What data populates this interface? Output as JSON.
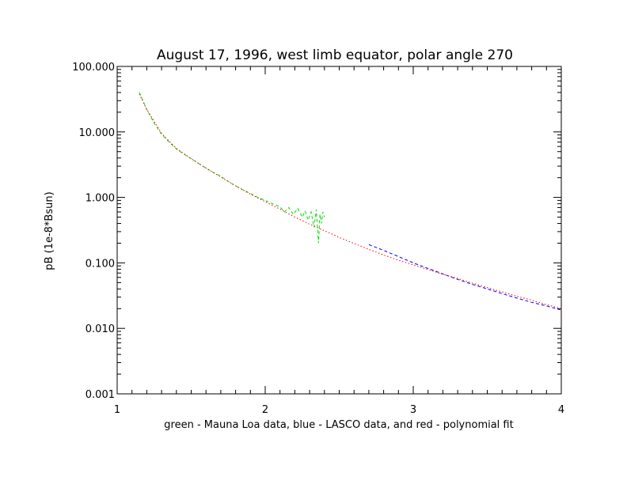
{
  "chart_data": {
    "type": "line",
    "title": "August 17, 1996, west limb equator, polar angle 270",
    "xlabel": "green - Mauna Loa data, blue - LASCO data, and red - polynomial fit",
    "ylabel": "pB (1e-8*Bsun)",
    "xlim": [
      1,
      4
    ],
    "ylim": [
      0.001,
      100
    ],
    "yscale": "log",
    "grid": false,
    "x_ticks": [
      1,
      2,
      3,
      4
    ],
    "x_tick_labels": [
      "1",
      "2",
      "3",
      "4"
    ],
    "y_ticks": [
      0.001,
      0.01,
      0.1,
      1,
      10,
      100
    ],
    "y_tick_labels": [
      "0.001",
      "0.010",
      "0.100",
      "1.000",
      "10.000",
      "100.000"
    ],
    "series": [
      {
        "color": "#00dd00",
        "style": "dashed",
        "x": [
          1.15,
          1.2,
          1.25,
          1.3,
          1.35,
          1.4,
          1.45,
          1.5,
          1.55,
          1.6,
          1.65,
          1.7,
          1.75,
          1.8,
          1.85,
          1.9,
          1.95,
          2.0,
          2.05,
          2.1,
          2.13,
          2.16,
          2.19,
          2.22,
          2.25,
          2.27,
          2.29,
          2.31,
          2.33,
          2.345,
          2.36,
          2.37,
          2.38,
          2.39,
          2.4
        ],
        "y": [
          40,
          22,
          13.5,
          9.2,
          7.0,
          5.5,
          4.6,
          3.9,
          3.3,
          2.8,
          2.4,
          2.1,
          1.75,
          1.5,
          1.3,
          1.15,
          1.0,
          0.9,
          0.8,
          0.72,
          0.6,
          0.7,
          0.55,
          0.68,
          0.5,
          0.62,
          0.45,
          0.6,
          0.35,
          0.65,
          0.2,
          0.55,
          0.4,
          0.6,
          0.5
        ]
      },
      {
        "color": "#0000ff",
        "style": "dashed",
        "x": [
          2.7,
          2.8,
          2.9,
          3.0,
          3.1,
          3.2,
          3.3,
          3.4,
          3.5,
          3.6,
          3.7,
          3.8,
          3.9,
          4.0
        ],
        "y": [
          0.19,
          0.155,
          0.125,
          0.1,
          0.082,
          0.068,
          0.056,
          0.047,
          0.04,
          0.034,
          0.029,
          0.025,
          0.022,
          0.019
        ]
      },
      {
        "color": "#ff0000",
        "style": "dotted",
        "x": [
          1.15,
          1.2,
          1.3,
          1.4,
          1.5,
          1.6,
          1.7,
          1.8,
          1.9,
          2.0,
          2.1,
          2.2,
          2.3,
          2.4,
          2.5,
          2.6,
          2.7,
          2.8,
          2.9,
          3.0,
          3.1,
          3.2,
          3.3,
          3.4,
          3.5,
          3.6,
          3.7,
          3.8,
          3.9,
          4.0
        ],
        "y": [
          38,
          22,
          9.5,
          5.6,
          3.9,
          2.8,
          2.05,
          1.5,
          1.12,
          0.86,
          0.66,
          0.5,
          0.39,
          0.31,
          0.245,
          0.198,
          0.161,
          0.132,
          0.11,
          0.093,
          0.079,
          0.067,
          0.058,
          0.049,
          0.042,
          0.036,
          0.031,
          0.027,
          0.023,
          0.02
        ]
      }
    ]
  }
}
